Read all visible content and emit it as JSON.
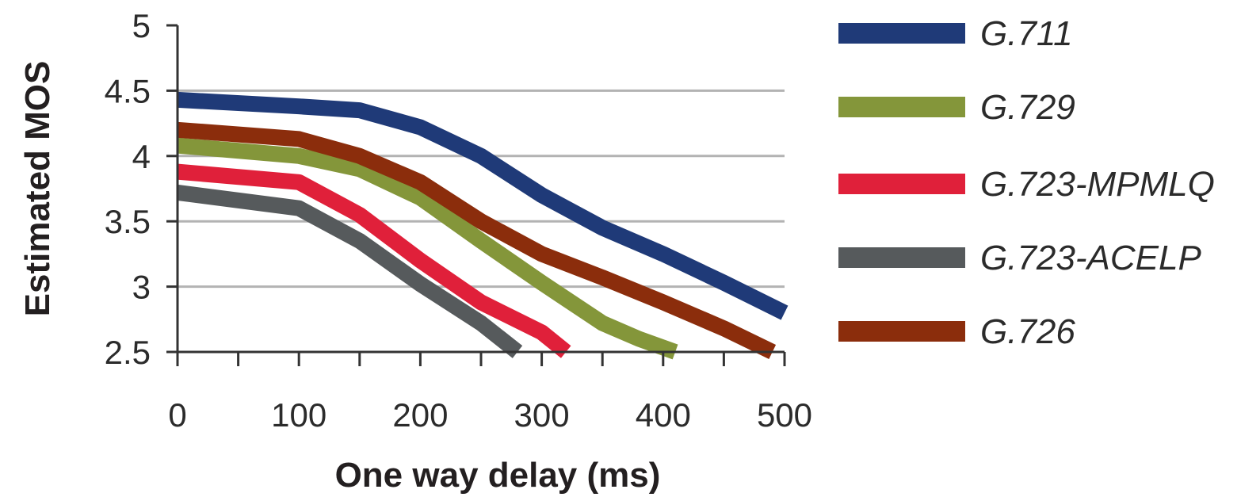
{
  "chart_data": {
    "type": "line",
    "xlabel": "One way delay (ms)",
    "ylabel": "Estimated MOS",
    "xlim": [
      0,
      500
    ],
    "ylim": [
      2.5,
      5
    ],
    "x_ticks": [
      0,
      100,
      200,
      300,
      400,
      500
    ],
    "x_tick_labels": [
      "0",
      "100",
      "200",
      "300",
      "400",
      "500"
    ],
    "y_ticks": [
      2.5,
      3,
      3.5,
      4,
      4.5,
      5
    ],
    "y_tick_labels": [
      "2.5",
      "3",
      "3.5",
      "4",
      "4.5",
      "5"
    ],
    "grid": "horizontal",
    "legend_position": "right",
    "series": [
      {
        "name": "G.711",
        "color": "#1f3a78",
        "points": [
          [
            0,
            4.43
          ],
          [
            100,
            4.38
          ],
          [
            150,
            4.35
          ],
          [
            200,
            4.22
          ],
          [
            250,
            4.0
          ],
          [
            300,
            3.7
          ],
          [
            350,
            3.45
          ],
          [
            400,
            3.25
          ],
          [
            450,
            3.03
          ],
          [
            500,
            2.8
          ]
        ]
      },
      {
        "name": "G.729",
        "color": "#84963a",
        "points": [
          [
            0,
            4.08
          ],
          [
            100,
            4.0
          ],
          [
            150,
            3.9
          ],
          [
            200,
            3.68
          ],
          [
            250,
            3.35
          ],
          [
            300,
            3.03
          ],
          [
            350,
            2.72
          ],
          [
            380,
            2.6
          ],
          [
            410,
            2.5
          ]
        ]
      },
      {
        "name": "G.723-MPMLQ",
        "color": "#e0203a",
        "points": [
          [
            0,
            3.88
          ],
          [
            100,
            3.8
          ],
          [
            150,
            3.55
          ],
          [
            200,
            3.2
          ],
          [
            250,
            2.88
          ],
          [
            300,
            2.65
          ],
          [
            320,
            2.5
          ]
        ]
      },
      {
        "name": "G.723-ACELP",
        "color": "#565a5c",
        "points": [
          [
            0,
            3.72
          ],
          [
            100,
            3.6
          ],
          [
            150,
            3.35
          ],
          [
            200,
            3.02
          ],
          [
            250,
            2.72
          ],
          [
            280,
            2.5
          ]
        ]
      },
      {
        "name": "G.726",
        "color": "#8b2d0c",
        "points": [
          [
            0,
            4.2
          ],
          [
            100,
            4.13
          ],
          [
            150,
            4.0
          ],
          [
            200,
            3.8
          ],
          [
            250,
            3.5
          ],
          [
            300,
            3.25
          ],
          [
            350,
            3.07
          ],
          [
            400,
            2.88
          ],
          [
            450,
            2.68
          ],
          [
            490,
            2.5
          ]
        ]
      }
    ]
  }
}
